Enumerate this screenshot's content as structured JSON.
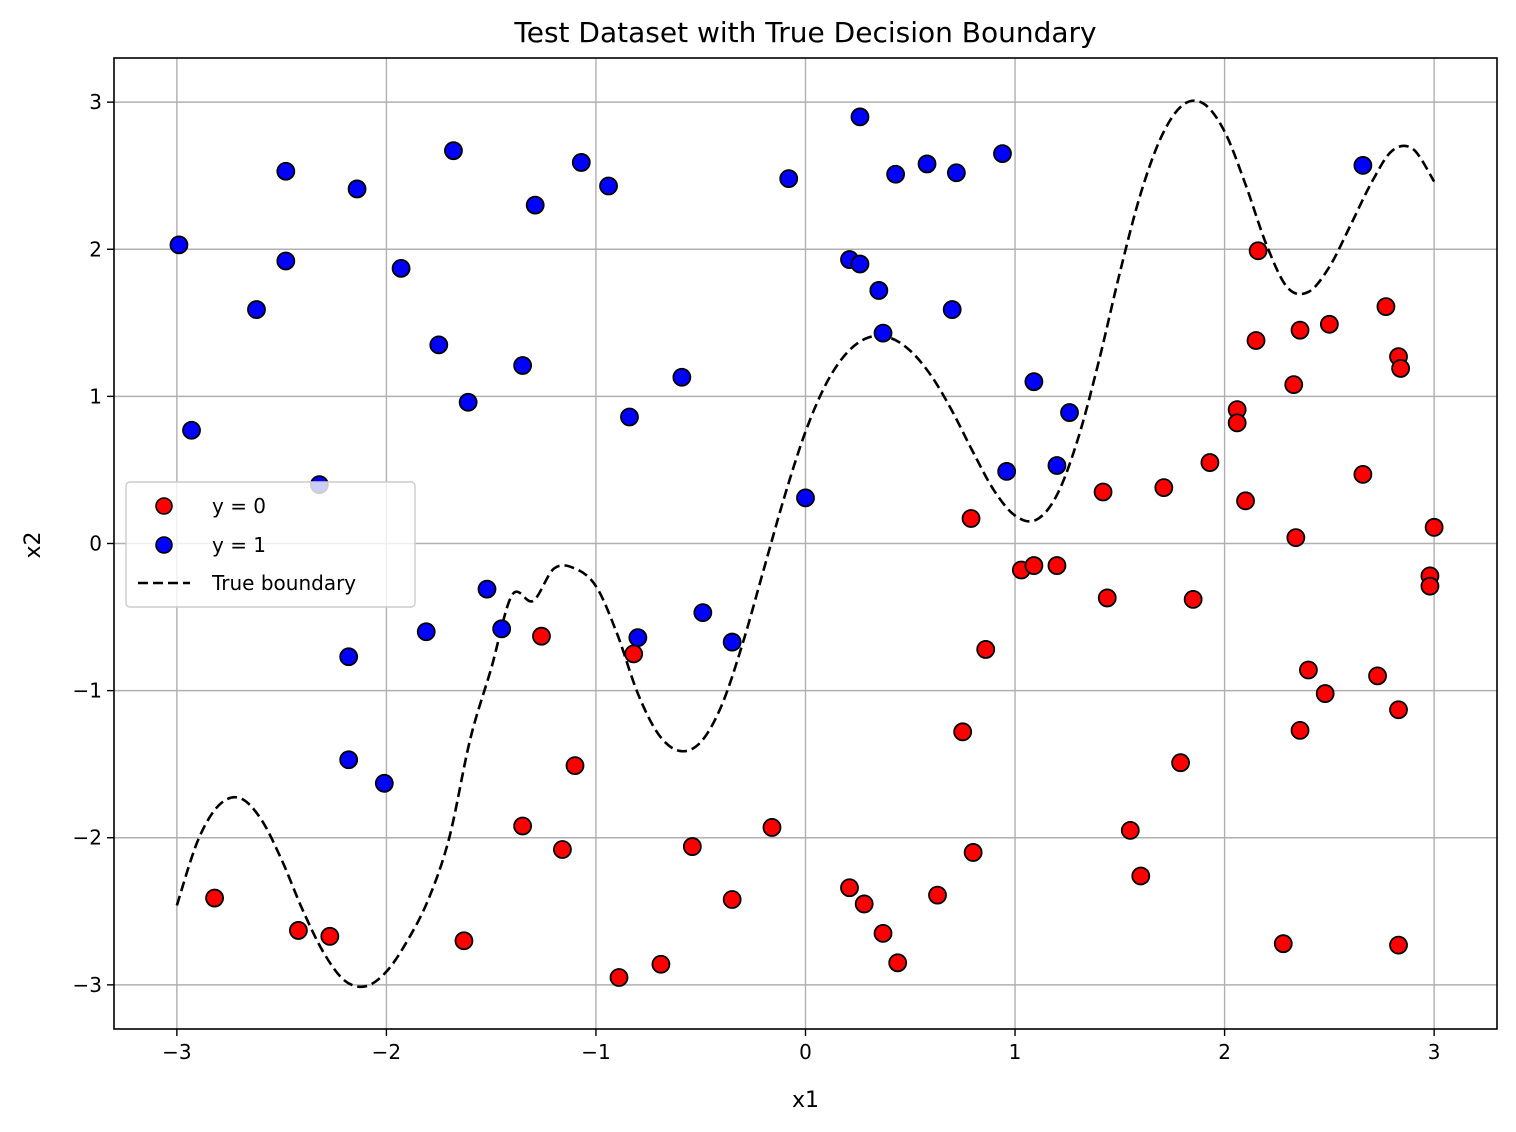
{
  "chart_data": {
    "type": "scatter",
    "title": "Test Dataset with True Decision Boundary",
    "xlabel": "x1",
    "ylabel": "x2",
    "xlim": [
      -3.3,
      3.3
    ],
    "ylim": [
      -3.3,
      3.3
    ],
    "xticks": [
      -3,
      -2,
      -1,
      0,
      1,
      2,
      3
    ],
    "yticks": [
      -3,
      -2,
      -1,
      0,
      1,
      2,
      3
    ],
    "xtick_labels": [
      "−3",
      "−2",
      "−1",
      "0",
      "1",
      "2",
      "3"
    ],
    "ytick_labels": [
      "−3",
      "−2",
      "−1",
      "0",
      "1",
      "2",
      "3"
    ],
    "grid": true,
    "legend_position": "center-left",
    "series": [
      {
        "name": "y = 0",
        "kind": "scatter",
        "color": "#ff0000",
        "points": [
          [
            -2.82,
            -2.41
          ],
          [
            -2.42,
            -2.63
          ],
          [
            -2.27,
            -2.67
          ],
          [
            -1.63,
            -2.7
          ],
          [
            -1.26,
            -0.63
          ],
          [
            -1.1,
            -1.51
          ],
          [
            -1.35,
            -1.92
          ],
          [
            -1.16,
            -2.08
          ],
          [
            -0.89,
            -2.95
          ],
          [
            -0.69,
            -2.86
          ],
          [
            -0.82,
            -0.75
          ],
          [
            -0.54,
            -2.06
          ],
          [
            -0.35,
            -2.42
          ],
          [
            -0.16,
            -1.93
          ],
          [
            0.21,
            -2.34
          ],
          [
            0.28,
            -2.45
          ],
          [
            0.37,
            -2.65
          ],
          [
            0.44,
            -2.85
          ],
          [
            0.63,
            -2.39
          ],
          [
            0.75,
            -1.28
          ],
          [
            0.79,
            0.17
          ],
          [
            0.8,
            -2.1
          ],
          [
            0.86,
            -0.72
          ],
          [
            1.03,
            -0.18
          ],
          [
            1.09,
            -0.15
          ],
          [
            1.2,
            -0.15
          ],
          [
            1.42,
            0.35
          ],
          [
            1.44,
            -0.37
          ],
          [
            1.55,
            -1.95
          ],
          [
            1.6,
            -2.26
          ],
          [
            1.71,
            0.38
          ],
          [
            1.79,
            -1.49
          ],
          [
            1.85,
            -0.38
          ],
          [
            1.93,
            0.55
          ],
          [
            2.06,
            0.91
          ],
          [
            2.06,
            0.82
          ],
          [
            2.1,
            0.29
          ],
          [
            2.15,
            1.38
          ],
          [
            2.16,
            1.99
          ],
          [
            2.28,
            -2.72
          ],
          [
            2.33,
            1.08
          ],
          [
            2.34,
            0.04
          ],
          [
            2.36,
            1.45
          ],
          [
            2.36,
            -1.27
          ],
          [
            2.4,
            -0.86
          ],
          [
            2.48,
            -1.02
          ],
          [
            2.5,
            1.49
          ],
          [
            2.66,
            0.47
          ],
          [
            2.73,
            -0.9
          ],
          [
            2.77,
            1.61
          ],
          [
            2.83,
            1.27
          ],
          [
            2.84,
            1.19
          ],
          [
            2.83,
            -1.13
          ],
          [
            2.83,
            -2.73
          ],
          [
            2.98,
            -0.22
          ],
          [
            2.98,
            -0.29
          ],
          [
            3.0,
            0.11
          ]
        ]
      },
      {
        "name": "y = 1",
        "kind": "scatter",
        "color": "#0000ff",
        "points": [
          [
            -2.99,
            2.03
          ],
          [
            -2.93,
            0.77
          ],
          [
            -2.62,
            1.59
          ],
          [
            -2.48,
            2.53
          ],
          [
            -2.48,
            1.92
          ],
          [
            -2.32,
            0.4
          ],
          [
            -2.18,
            -0.77
          ],
          [
            -2.18,
            -1.47
          ],
          [
            -2.14,
            2.41
          ],
          [
            -2.01,
            -1.63
          ],
          [
            -1.93,
            1.87
          ],
          [
            -1.81,
            -0.6
          ],
          [
            -1.75,
            1.35
          ],
          [
            -1.68,
            2.67
          ],
          [
            -1.61,
            0.96
          ],
          [
            -1.52,
            -0.31
          ],
          [
            -1.45,
            -0.58
          ],
          [
            -1.35,
            1.21
          ],
          [
            -1.29,
            2.3
          ],
          [
            -1.07,
            2.59
          ],
          [
            -0.94,
            2.43
          ],
          [
            -0.84,
            0.86
          ],
          [
            -0.8,
            -0.64
          ],
          [
            -0.59,
            1.13
          ],
          [
            -0.49,
            -0.47
          ],
          [
            -0.35,
            -0.67
          ],
          [
            -0.08,
            2.48
          ],
          [
            0.0,
            0.31
          ],
          [
            0.21,
            1.93
          ],
          [
            0.26,
            1.9
          ],
          [
            0.26,
            2.9
          ],
          [
            0.35,
            1.72
          ],
          [
            0.37,
            1.43
          ],
          [
            0.43,
            2.51
          ],
          [
            0.58,
            2.58
          ],
          [
            0.7,
            1.59
          ],
          [
            0.72,
            2.52
          ],
          [
            0.94,
            2.65
          ],
          [
            0.96,
            0.49
          ],
          [
            1.09,
            1.1
          ],
          [
            1.2,
            0.53
          ],
          [
            1.26,
            0.89
          ],
          [
            2.66,
            2.57
          ]
        ]
      },
      {
        "name": "True boundary",
        "kind": "line",
        "style": "dashed",
        "color": "#000000",
        "x": [
          -3.0,
          -2.9,
          -2.8,
          -2.7,
          -2.6,
          -2.5,
          -2.4,
          -2.3,
          -2.2,
          -2.1,
          -2.0,
          -1.9,
          -1.8,
          -1.7,
          -1.6,
          -1.5,
          -1.4,
          -1.3,
          -1.2,
          -1.1,
          -1.0,
          -0.9,
          -0.8,
          -0.7,
          -0.6,
          -0.5,
          -0.4,
          -0.3,
          -0.2,
          -0.1,
          0.0,
          0.1,
          0.2,
          0.3,
          0.4,
          0.5,
          0.6,
          0.7,
          0.8,
          0.9,
          1.0,
          1.1,
          1.2,
          1.3,
          1.4,
          1.5,
          1.6,
          1.7,
          1.8,
          1.9,
          2.0,
          2.1,
          2.2,
          2.3,
          2.4,
          2.5,
          2.6,
          2.7,
          2.8,
          2.9,
          3.0
        ],
        "y": [
          -2.46,
          -2.02,
          -1.78,
          -1.73,
          -1.87,
          -2.15,
          -2.49,
          -2.78,
          -2.97,
          -3.01,
          -2.91,
          -2.7,
          -2.42,
          -2.0,
          -1.33,
          -0.85,
          -0.35,
          -0.39,
          -0.17,
          -0.17,
          -0.29,
          -0.61,
          -1.02,
          -1.3,
          -1.41,
          -1.35,
          -1.1,
          -0.68,
          -0.18,
          0.32,
          0.76,
          1.09,
          1.3,
          1.4,
          1.4,
          1.31,
          1.14,
          0.9,
          0.62,
          0.36,
          0.19,
          0.16,
          0.33,
          0.71,
          1.24,
          1.84,
          2.38,
          2.77,
          2.98,
          2.99,
          2.8,
          2.44,
          2.03,
          1.74,
          1.71,
          1.88,
          2.16,
          2.45,
          2.67,
          2.68,
          2.46
        ]
      }
    ]
  }
}
